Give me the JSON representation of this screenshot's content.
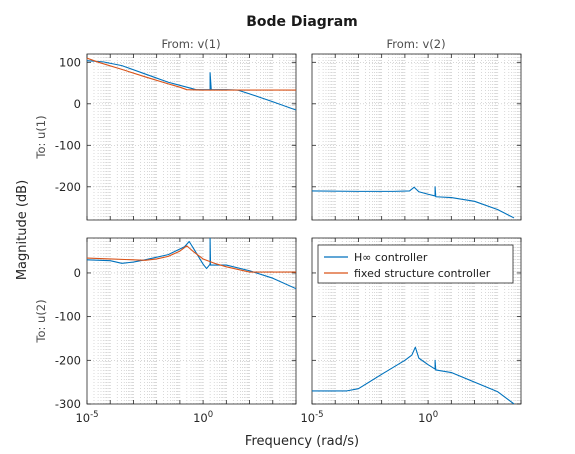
{
  "chart_data": {
    "type": "line",
    "title": "Bode Diagram",
    "xlabel": "Frequency  (rad/s)",
    "ylabel": "Magnitude (dB)",
    "xscale": "log",
    "x_tick_labels": [
      "10^-5",
      "10^0"
    ],
    "grid": true,
    "legend": {
      "placement": "top-right of bottom-right panel",
      "entries": [
        "H∞ controller",
        "fixed structure controller"
      ]
    },
    "colors": {
      "hinf": "#0072bd",
      "fixed": "#d95319",
      "grid": "#bfbfbf",
      "frame": "#262626"
    },
    "column_labels": [
      "From: v(1)",
      "From: v(2)"
    ],
    "row_labels": [
      "To: u(1)",
      "To: u(2)"
    ],
    "panels": [
      {
        "row": 0,
        "col": 0,
        "xlim": [
          -5,
          4
        ],
        "ylim": [
          -280,
          120
        ],
        "yticks": [
          100,
          0,
          -100,
          -200
        ],
        "series": [
          {
            "key": "hinf",
            "points": [
              [
                -5,
                104
              ],
              [
                -4.3,
                101
              ],
              [
                -3.5,
                92
              ],
              [
                -2.5,
                72
              ],
              [
                -1.5,
                52
              ],
              [
                -0.7,
                40
              ],
              [
                -0.3,
                34
              ],
              [
                0.3,
                34
              ],
              [
                0.3,
                75
              ],
              [
                0.35,
                34
              ],
              [
                1,
                34
              ],
              [
                1.5,
                33
              ],
              [
                2,
                24
              ],
              [
                3,
                5
              ],
              [
                4,
                -15
              ]
            ]
          },
          {
            "key": "fixed",
            "points": [
              [
                -5,
                110
              ],
              [
                -4.5,
                100
              ],
              [
                -3.5,
                83
              ],
              [
                -2.5,
                65
              ],
              [
                -1.5,
                48
              ],
              [
                -1,
                40
              ],
              [
                -0.7,
                34
              ],
              [
                0,
                33
              ],
              [
                1,
                33
              ],
              [
                2,
                33
              ],
              [
                3,
                33
              ],
              [
                4,
                33
              ]
            ]
          }
        ]
      },
      {
        "row": 0,
        "col": 1,
        "xlim": [
          -5,
          4
        ],
        "ylim": [
          -280,
          120
        ],
        "yticks": [
          100,
          0,
          -100,
          -200
        ],
        "series": [
          {
            "key": "hinf",
            "points": [
              [
                -5,
                -210
              ],
              [
                -3,
                -211
              ],
              [
                -1.5,
                -211
              ],
              [
                -0.8,
                -210
              ],
              [
                -0.6,
                -201
              ],
              [
                -0.4,
                -212
              ],
              [
                0,
                -218
              ],
              [
                0.3,
                -222
              ],
              [
                0.3,
                -200
              ],
              [
                0.33,
                -224
              ],
              [
                1,
                -226
              ],
              [
                2,
                -235
              ],
              [
                3,
                -255
              ],
              [
                3.7,
                -275
              ]
            ]
          }
        ]
      },
      {
        "row": 1,
        "col": 0,
        "xlim": [
          -5,
          4
        ],
        "ylim": [
          -300,
          80
        ],
        "yticks": [
          0,
          -100,
          -200,
          -300
        ],
        "series": [
          {
            "key": "hinf",
            "points": [
              [
                -5,
                30
              ],
              [
                -4,
                28
              ],
              [
                -3.5,
                22
              ],
              [
                -3,
                25
              ],
              [
                -2.5,
                30
              ],
              [
                -1.5,
                42
              ],
              [
                -0.8,
                60
              ],
              [
                -0.6,
                72
              ],
              [
                -0.4,
                55
              ],
              [
                0,
                20
              ],
              [
                0.15,
                10
              ],
              [
                0.3,
                20
              ],
              [
                0.3,
                80
              ],
              [
                0.32,
                18
              ],
              [
                1,
                18
              ],
              [
                2,
                5
              ],
              [
                3,
                -12
              ],
              [
                4,
                -36
              ]
            ]
          },
          {
            "key": "fixed",
            "points": [
              [
                -5,
                34
              ],
              [
                -4,
                32
              ],
              [
                -3,
                30
              ],
              [
                -2.5,
                29
              ],
              [
                -2,
                32
              ],
              [
                -1.5,
                38
              ],
              [
                -1,
                50
              ],
              [
                -0.7,
                62
              ],
              [
                -0.4,
                48
              ],
              [
                0,
                32
              ],
              [
                0.5,
                22
              ],
              [
                1,
                14
              ],
              [
                2,
                2
              ],
              [
                3,
                2
              ],
              [
                4,
                2
              ]
            ]
          }
        ]
      },
      {
        "row": 1,
        "col": 1,
        "xlim": [
          -5,
          4
        ],
        "ylim": [
          -300,
          80
        ],
        "yticks": [
          0,
          -100,
          -200,
          -300
        ],
        "series": [
          {
            "key": "hinf",
            "points": [
              [
                -5,
                -270
              ],
              [
                -3.5,
                -270
              ],
              [
                -3,
                -265
              ],
              [
                -2,
                -232
              ],
              [
                -1,
                -200
              ],
              [
                -0.7,
                -188
              ],
              [
                -0.55,
                -170
              ],
              [
                -0.4,
                -195
              ],
              [
                0,
                -210
              ],
              [
                0.3,
                -220
              ],
              [
                0.3,
                -200
              ],
              [
                0.33,
                -222
              ],
              [
                1,
                -228
              ],
              [
                2,
                -250
              ],
              [
                3,
                -272
              ],
              [
                3.7,
                -300
              ]
            ]
          }
        ]
      }
    ]
  }
}
